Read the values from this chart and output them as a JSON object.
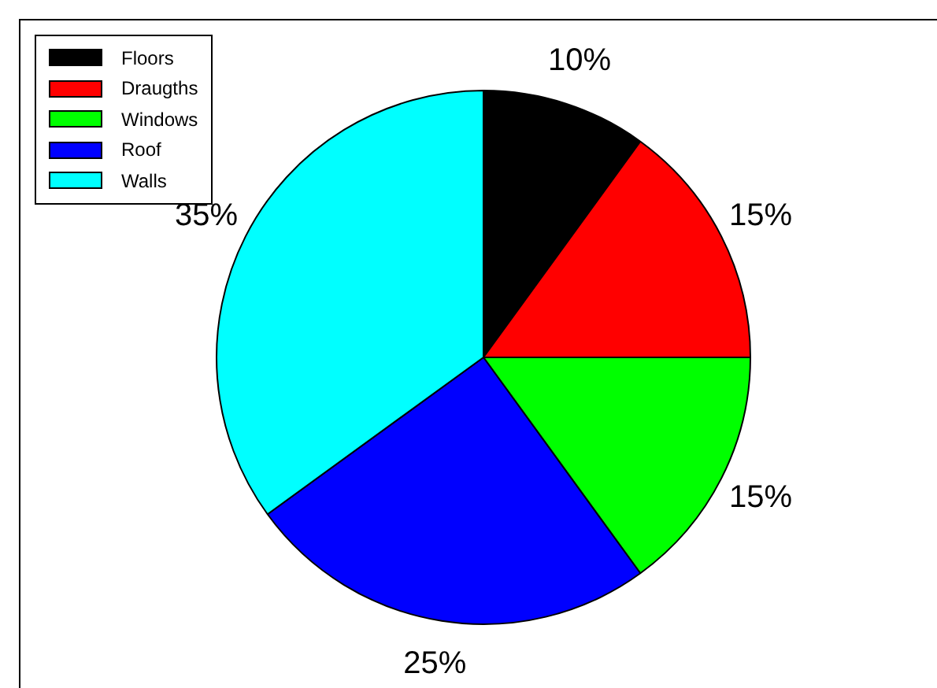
{
  "chart_data": {
    "type": "pie",
    "categories": [
      "Floors",
      "Draugths",
      "Windows",
      "Roof",
      "Walls"
    ],
    "values": [
      10,
      15,
      15,
      25,
      35
    ],
    "colors": [
      "#000000",
      "#ff0000",
      "#00ff00",
      "#0000ff",
      "#00ffff"
    ],
    "value_labels": [
      "10%",
      "15%",
      "15%",
      "25%",
      "35%"
    ],
    "legend": "top left"
  }
}
